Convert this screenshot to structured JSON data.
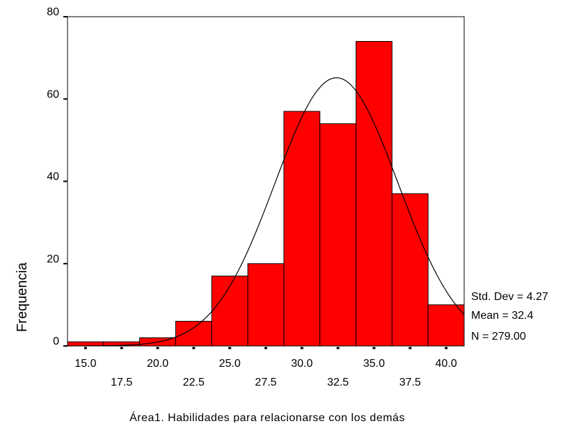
{
  "chart_data": {
    "type": "bar",
    "title": "",
    "xlabel": "Área1. Habilidades para relacionarse con los demás",
    "ylabel": "Frequencia",
    "bin_width": 2.5,
    "bin_centers": [
      15.0,
      17.5,
      20.0,
      22.5,
      25.0,
      27.5,
      30.0,
      32.5,
      35.0,
      37.5,
      40.0
    ],
    "values": [
      1,
      1,
      2,
      6,
      17,
      20,
      57,
      54,
      74,
      37,
      10
    ],
    "xlim": [
      13.75,
      41.25
    ],
    "ylim": [
      0,
      80
    ],
    "y_ticks": [
      0,
      20,
      40,
      60,
      80
    ],
    "x_tick_labels_upper": [
      "15.0",
      "20.0",
      "25.0",
      "30.0",
      "35.0",
      "40.0"
    ],
    "x_tick_labels_lower": [
      "17.5",
      "22.5",
      "27.5",
      "32.5",
      "37.5"
    ],
    "normal_curve": {
      "mean": 32.4,
      "std_dev": 4.27,
      "n": 279
    },
    "bar_color": "#ff0000",
    "grid": false,
    "stats": {
      "std_dev_label": "Std. Dev = 4.27",
      "mean_label": "Mean = 32.4",
      "n_label": "N = 279.00"
    },
    "stats_placement": "right"
  }
}
